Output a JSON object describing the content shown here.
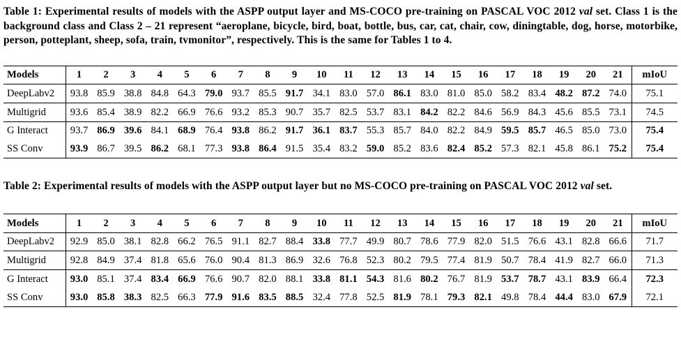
{
  "table1": {
    "caption": {
      "before_val": "Table 1: Experimental results of models with the ASPP output layer and MS-COCO pre-training on PASCAL VOC 2012 ",
      "val_word": "val",
      "after_val": " set. Class 1 is the background class and Class 2 – 21 represent “aeroplane, bicycle, bird, boat, bottle, bus, car, cat, chair, cow, diningtable, dog, horse, motorbike, person, potteplant, sheep, sofa, train, tvmonitor”, respectively. This is the same for Tables 1 to 4."
    },
    "header": {
      "models_label": "Models",
      "class_columns": [
        "1",
        "2",
        "3",
        "4",
        "5",
        "6",
        "7",
        "8",
        "9",
        "10",
        "11",
        "12",
        "13",
        "14",
        "15",
        "16",
        "17",
        "18",
        "19",
        "20",
        "21"
      ],
      "miou_label": "mIoU"
    },
    "rows": [
      {
        "model": "DeepLabv2",
        "values": [
          "93.8",
          "85.9",
          "38.8",
          "84.8",
          "64.3",
          "79.0",
          "93.7",
          "85.5",
          "91.7",
          "34.1",
          "83.0",
          "57.0",
          "86.1",
          "83.0",
          "81.0",
          "85.0",
          "58.2",
          "83.4",
          "48.2",
          "87.2",
          "74.0"
        ],
        "bold": [
          5,
          8,
          12,
          18,
          19
        ],
        "miou": "75.1",
        "miou_bold": false,
        "group_end": true
      },
      {
        "model": "Multigrid",
        "values": [
          "93.6",
          "85.4",
          "38.9",
          "82.2",
          "66.9",
          "76.6",
          "93.2",
          "85.3",
          "90.7",
          "35.7",
          "82.5",
          "53.7",
          "83.1",
          "84.2",
          "82.2",
          "84.6",
          "56.9",
          "84.3",
          "45.6",
          "85.5",
          "73.1"
        ],
        "bold": [
          13
        ],
        "miou": "74.5",
        "miou_bold": false,
        "group_end": true
      },
      {
        "model": "G Interact",
        "values": [
          "93.7",
          "86.9",
          "39.6",
          "84.1",
          "68.9",
          "76.4",
          "93.8",
          "86.2",
          "91.7",
          "36.1",
          "83.7",
          "55.3",
          "85.7",
          "84.0",
          "82.2",
          "84.9",
          "59.5",
          "85.7",
          "46.5",
          "85.0",
          "73.0"
        ],
        "bold": [
          1,
          2,
          4,
          6,
          8,
          9,
          10,
          16,
          17
        ],
        "miou": "75.4",
        "miou_bold": true,
        "group_end": false
      },
      {
        "model": "SS Conv",
        "values": [
          "93.9",
          "86.7",
          "39.5",
          "86.2",
          "68.1",
          "77.3",
          "93.8",
          "86.4",
          "91.5",
          "35.4",
          "83.2",
          "59.0",
          "85.2",
          "83.6",
          "82.4",
          "85.2",
          "57.3",
          "82.1",
          "45.8",
          "86.1",
          "75.2"
        ],
        "bold": [
          0,
          3,
          6,
          7,
          11,
          14,
          15,
          20
        ],
        "miou": "75.4",
        "miou_bold": true,
        "group_end": false
      }
    ]
  },
  "table2": {
    "caption": {
      "before_val": "Table 2: Experimental results of models with the ASPP output layer but no MS-COCO pre-training on PASCAL VOC 2012 ",
      "val_word": "val",
      "after_val": " set."
    },
    "header": {
      "models_label": "Models",
      "class_columns": [
        "1",
        "2",
        "3",
        "4",
        "5",
        "6",
        "7",
        "8",
        "9",
        "10",
        "11",
        "12",
        "13",
        "14",
        "15",
        "16",
        "17",
        "18",
        "19",
        "20",
        "21"
      ],
      "miou_label": "mIoU"
    },
    "rows": [
      {
        "model": "DeepLabv2",
        "values": [
          "92.9",
          "85.0",
          "38.1",
          "82.8",
          "66.2",
          "76.5",
          "91.1",
          "82.7",
          "88.4",
          "33.8",
          "77.7",
          "49.9",
          "80.7",
          "78.6",
          "77.9",
          "82.0",
          "51.5",
          "76.6",
          "43.1",
          "82.8",
          "66.6"
        ],
        "bold": [
          9
        ],
        "miou": "71.7",
        "miou_bold": false,
        "group_end": true
      },
      {
        "model": "Multigrid",
        "values": [
          "92.8",
          "84.9",
          "37.4",
          "81.8",
          "65.6",
          "76.0",
          "90.4",
          "81.3",
          "86.9",
          "32.6",
          "76.8",
          "52.3",
          "80.2",
          "79.5",
          "77.4",
          "81.9",
          "50.7",
          "78.4",
          "41.9",
          "82.7",
          "66.0"
        ],
        "bold": [],
        "miou": "71.3",
        "miou_bold": false,
        "group_end": true
      },
      {
        "model": "G Interact",
        "values": [
          "93.0",
          "85.1",
          "37.4",
          "83.4",
          "66.9",
          "76.6",
          "90.7",
          "82.0",
          "88.1",
          "33.8",
          "81.1",
          "54.3",
          "81.6",
          "80.2",
          "76.7",
          "81.9",
          "53.7",
          "78.7",
          "43.1",
          "83.9",
          "66.4"
        ],
        "bold": [
          0,
          3,
          4,
          9,
          10,
          11,
          13,
          16,
          17,
          19
        ],
        "miou": "72.3",
        "miou_bold": true,
        "group_end": false
      },
      {
        "model": "SS Conv",
        "values": [
          "93.0",
          "85.8",
          "38.3",
          "82.5",
          "66.3",
          "77.9",
          "91.6",
          "83.5",
          "88.5",
          "32.4",
          "77.8",
          "52.5",
          "81.9",
          "78.1",
          "79.3",
          "82.1",
          "49.8",
          "78.4",
          "44.4",
          "83.0",
          "67.9"
        ],
        "bold": [
          0,
          1,
          2,
          5,
          6,
          7,
          8,
          12,
          14,
          15,
          18,
          20
        ],
        "miou": "72.1",
        "miou_bold": false,
        "group_end": false
      }
    ]
  }
}
